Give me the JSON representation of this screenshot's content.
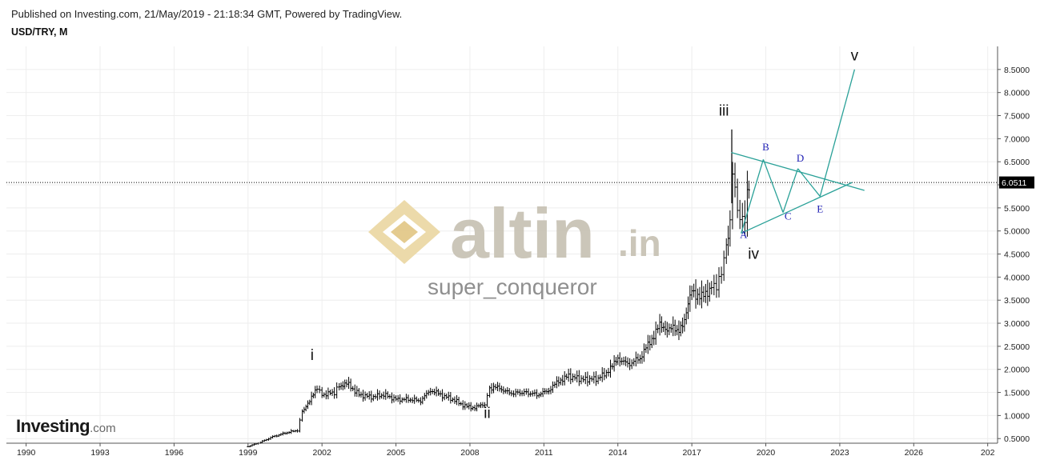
{
  "header": {
    "published": "Published on Investing.com, 21/May/2019 - 21:18:34 GMT, Powered by TradingView.",
    "symbol": "USD/TRY, M"
  },
  "watermark": {
    "brand": "altin",
    "brand_suffix": ".in",
    "author": "super_conqueror"
  },
  "logo": {
    "name": "Investing",
    "suffix": ".com"
  },
  "colors": {
    "candle": "#000000",
    "pattern": "#2aa198",
    "label_blue": "#1f1fb4",
    "grid": "#eeeeee",
    "price_tag_bg": "#000000",
    "watermark": "#c9c3b6",
    "watermark_icon": "#ecd9a6"
  },
  "chart_data": {
    "type": "candlestick",
    "title": "USD/TRY, M",
    "x_ticks": [
      "1990",
      "1993",
      "1996",
      "1999",
      "2002",
      "2005",
      "2008",
      "2011",
      "2014",
      "2017",
      "2020",
      "2023",
      "2026",
      "202"
    ],
    "y_ticks": [
      "8.5000",
      "8.0000",
      "7.5000",
      "7.0000",
      "6.5000",
      "6.0000",
      "5.5000",
      "5.0000",
      "4.5000",
      "4.0000",
      "3.5000",
      "3.0000",
      "2.5000",
      "2.0000",
      "1.5000",
      "1.0000",
      "0.5000"
    ],
    "ylim": [
      0.4,
      9.0
    ],
    "xlim": [
      1989.2,
      2029.4
    ],
    "last_price": "6.0511",
    "price_line": 6.0511,
    "series": [
      {
        "t": 1999.0,
        "v": 0.33
      },
      {
        "t": 1999.5,
        "v": 0.42
      },
      {
        "t": 2000.0,
        "v": 0.54
      },
      {
        "t": 2000.5,
        "v": 0.62
      },
      {
        "t": 2001.0,
        "v": 0.68
      },
      {
        "t": 2001.2,
        "v": 1.1
      },
      {
        "t": 2001.5,
        "v": 1.3
      },
      {
        "t": 2001.8,
        "v": 1.6
      },
      {
        "t": 2002.0,
        "v": 1.45
      },
      {
        "t": 2002.5,
        "v": 1.5
      },
      {
        "t": 2002.7,
        "v": 1.65
      },
      {
        "t": 2003.0,
        "v": 1.7
      },
      {
        "t": 2003.5,
        "v": 1.45
      },
      {
        "t": 2004.0,
        "v": 1.4
      },
      {
        "t": 2004.5,
        "v": 1.45
      },
      {
        "t": 2005.0,
        "v": 1.35
      },
      {
        "t": 2005.5,
        "v": 1.35
      },
      {
        "t": 2006.0,
        "v": 1.32
      },
      {
        "t": 2006.4,
        "v": 1.55
      },
      {
        "t": 2006.8,
        "v": 1.45
      },
      {
        "t": 2007.3,
        "v": 1.35
      },
      {
        "t": 2007.8,
        "v": 1.2
      },
      {
        "t": 2008.2,
        "v": 1.17
      },
      {
        "t": 2008.6,
        "v": 1.25
      },
      {
        "t": 2008.8,
        "v": 1.6
      },
      {
        "t": 2009.2,
        "v": 1.6
      },
      {
        "t": 2009.6,
        "v": 1.48
      },
      {
        "t": 2010.2,
        "v": 1.5
      },
      {
        "t": 2010.8,
        "v": 1.45
      },
      {
        "t": 2011.2,
        "v": 1.55
      },
      {
        "t": 2011.6,
        "v": 1.75
      },
      {
        "t": 2012.0,
        "v": 1.85
      },
      {
        "t": 2012.6,
        "v": 1.78
      },
      {
        "t": 2013.2,
        "v": 1.8
      },
      {
        "t": 2013.7,
        "v": 2.0
      },
      {
        "t": 2014.0,
        "v": 2.25
      },
      {
        "t": 2014.4,
        "v": 2.1
      },
      {
        "t": 2014.9,
        "v": 2.25
      },
      {
        "t": 2015.3,
        "v": 2.6
      },
      {
        "t": 2015.7,
        "v": 2.95
      },
      {
        "t": 2016.0,
        "v": 2.9
      },
      {
        "t": 2016.4,
        "v": 2.85
      },
      {
        "t": 2016.7,
        "v": 3.05
      },
      {
        "t": 2017.0,
        "v": 3.7
      },
      {
        "t": 2017.4,
        "v": 3.55
      },
      {
        "t": 2017.8,
        "v": 3.8
      },
      {
        "t": 2018.0,
        "v": 3.8
      },
      {
        "t": 2018.2,
        "v": 4.1
      },
      {
        "t": 2018.4,
        "v": 4.7
      },
      {
        "t": 2018.55,
        "v": 5.2
      },
      {
        "t": 2018.65,
        "v": 6.3
      },
      {
        "t": 2018.75,
        "v": 5.9
      },
      {
        "t": 2018.85,
        "v": 5.45
      },
      {
        "t": 2018.95,
        "v": 5.3
      },
      {
        "t": 2019.05,
        "v": 5.2
      },
      {
        "t": 2019.15,
        "v": 5.35
      },
      {
        "t": 2019.25,
        "v": 5.7
      },
      {
        "t": 2019.38,
        "v": 6.05
      }
    ],
    "wave_labels": [
      {
        "text": "i",
        "t": 2001.6,
        "v": 2.2
      },
      {
        "text": "ii",
        "t": 2008.7,
        "v": 0.95
      },
      {
        "text": "iii",
        "t": 2018.3,
        "v": 7.5
      },
      {
        "text": "iv",
        "t": 2019.5,
        "v": 4.4
      },
      {
        "text": "v",
        "t": 2023.6,
        "v": 8.7
      }
    ],
    "pattern_labels": [
      {
        "text": "A",
        "t": 2019.1,
        "v": 4.85
      },
      {
        "text": "B",
        "t": 2020.0,
        "v": 6.75
      },
      {
        "text": "C",
        "t": 2020.9,
        "v": 5.25
      },
      {
        "text": "D",
        "t": 2021.4,
        "v": 6.5
      },
      {
        "text": "E",
        "t": 2022.2,
        "v": 5.4
      }
    ],
    "pattern_lines": [
      {
        "from": {
          "t": 2018.6,
          "v": 6.7
        },
        "to": {
          "t": 2024.0,
          "v": 5.88
        }
      },
      {
        "from": {
          "t": 2019.0,
          "v": 4.95
        },
        "to": {
          "t": 2023.5,
          "v": 6.05
        }
      },
      {
        "from": {
          "t": 2019.0,
          "v": 4.95
        },
        "to": {
          "t": 2019.9,
          "v": 6.55
        }
      },
      {
        "from": {
          "t": 2019.9,
          "v": 6.55
        },
        "to": {
          "t": 2020.7,
          "v": 5.4
        }
      },
      {
        "from": {
          "t": 2020.7,
          "v": 5.4
        },
        "to": {
          "t": 2021.3,
          "v": 6.35
        }
      },
      {
        "from": {
          "t": 2021.3,
          "v": 6.35
        },
        "to": {
          "t": 2022.2,
          "v": 5.75
        }
      },
      {
        "from": {
          "t": 2022.2,
          "v": 5.75
        },
        "to": {
          "t": 2023.6,
          "v": 8.5
        }
      }
    ]
  }
}
